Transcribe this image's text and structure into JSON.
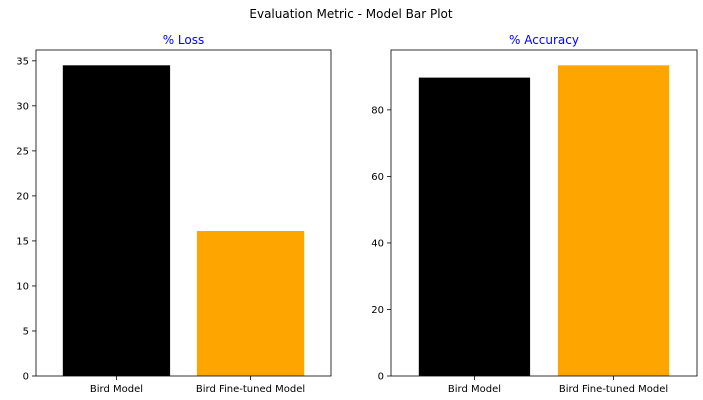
{
  "figure_title": "Evaluation Metric - Model Bar Plot",
  "colors": {
    "bird_model": "#000000",
    "bird_finetuned_model": "#ffa500",
    "subplot_title": "#0000ff"
  },
  "chart_data": [
    {
      "type": "bar",
      "title": "% Loss",
      "categories": [
        "Bird Model",
        "Bird Fine-tuned Model"
      ],
      "values": [
        34.5,
        16.1
      ],
      "ylim": [
        0,
        36.2
      ],
      "yticks": [
        0,
        5,
        10,
        15,
        20,
        25,
        30,
        35
      ],
      "bar_colors": [
        "#000000",
        "#ffa500"
      ],
      "grid": false
    },
    {
      "type": "bar",
      "title": "% Accuracy",
      "categories": [
        "Bird Model",
        "Bird Fine-tuned Model"
      ],
      "values": [
        89.7,
        93.4
      ],
      "ylim": [
        0,
        98
      ],
      "yticks": [
        0,
        20,
        40,
        60,
        80
      ],
      "bar_colors": [
        "#000000",
        "#ffa500"
      ],
      "grid": false
    }
  ]
}
